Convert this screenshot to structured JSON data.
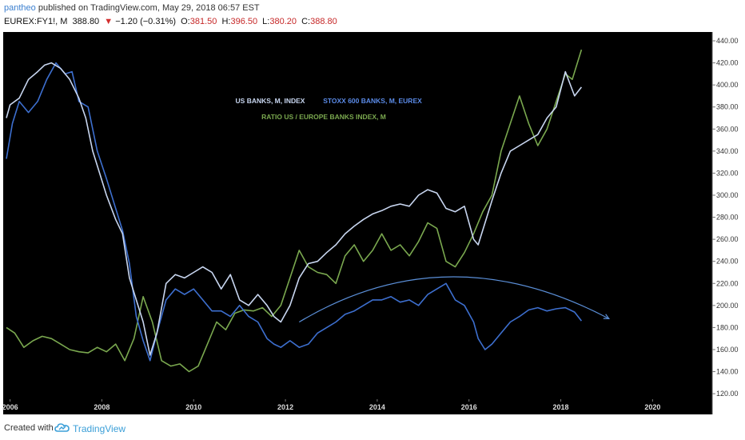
{
  "header": {
    "author": "pantheo",
    "published_text": "published on TradingView.com, May 29, 2018 06:57 EST",
    "symbol": "EUREX:FY1!, M",
    "last": "388.80",
    "direction_icon": "triangle-down-icon",
    "change": "−1.20 (−0.31%)",
    "open_label": "O:",
    "open": "381.50",
    "high_label": "H:",
    "high": "396.50",
    "low_label": "L:",
    "low": "380.20",
    "close_label": "C:",
    "close": "388.80"
  },
  "footer": {
    "created_with": "Created with",
    "brand": "TradingView",
    "brand_icon": "tradingview-cloud-icon"
  },
  "colors": {
    "background": "#000000",
    "us_banks": "#c8d6f0",
    "stoxx600": "#3d6fcf",
    "ratio": "#7aa84f",
    "arc": "#5b8fd8",
    "axis_text": "#dddddd",
    "negative": "#c62828",
    "brand": "#3b9fd8"
  },
  "chart_data": {
    "type": "line",
    "title": "",
    "xlabel": "",
    "ylabel": "",
    "xlim": [
      2005.85,
      2021.3
    ],
    "ylim": [
      115,
      448
    ],
    "x_ticks": [
      "2006",
      "2008",
      "2010",
      "2012",
      "2014",
      "2016",
      "2018",
      "2020"
    ],
    "y_ticks": [
      "120.00",
      "140.00",
      "160.00",
      "180.00",
      "200.00",
      "220.00",
      "240.00",
      "260.00",
      "280.00",
      "300.00",
      "320.00",
      "340.00",
      "360.00",
      "380.00",
      "400.00",
      "420.00",
      "440.00"
    ],
    "grid": false,
    "legend": [
      "US BANKS, M, INDEX",
      "STOXX 600 BANKS, M, EUREX",
      "RATIO US / EUROPE BANKS INDEX, M"
    ],
    "legend_placement": "top-center",
    "series": [
      {
        "name": "US BANKS, M, INDEX",
        "color": "#c8d6f0",
        "x": [
          2005.92,
          2006.0,
          2006.2,
          2006.4,
          2006.6,
          2006.75,
          2006.9,
          2007.1,
          2007.3,
          2007.5,
          2007.65,
          2007.8,
          2007.95,
          2008.1,
          2008.3,
          2008.45,
          2008.6,
          2008.75,
          2008.9,
          2009.05,
          2009.2,
          2009.4,
          2009.6,
          2009.8,
          2010.0,
          2010.2,
          2010.4,
          2010.6,
          2010.8,
          2011.0,
          2011.2,
          2011.4,
          2011.6,
          2011.75,
          2011.9,
          2012.1,
          2012.3,
          2012.5,
          2012.7,
          2012.9,
          2013.1,
          2013.3,
          2013.5,
          2013.7,
          2013.9,
          2014.1,
          2014.3,
          2014.5,
          2014.7,
          2014.9,
          2015.1,
          2015.3,
          2015.5,
          2015.7,
          2015.9,
          2016.1,
          2016.2,
          2016.35,
          2016.5,
          2016.7,
          2016.9,
          2017.1,
          2017.3,
          2017.5,
          2017.7,
          2017.9,
          2018.1,
          2018.3,
          2018.45
        ],
        "y": [
          370,
          382,
          388,
          405,
          412,
          418,
          420,
          415,
          405,
          388,
          370,
          340,
          320,
          300,
          278,
          265,
          225,
          205,
          185,
          155,
          175,
          220,
          228,
          225,
          230,
          235,
          230,
          215,
          228,
          205,
          200,
          210,
          200,
          190,
          185,
          200,
          225,
          238,
          240,
          248,
          255,
          265,
          272,
          278,
          283,
          286,
          290,
          292,
          290,
          300,
          305,
          302,
          288,
          285,
          290,
          260,
          255,
          275,
          295,
          320,
          340,
          345,
          350,
          355,
          370,
          380,
          412,
          390,
          398
        ]
      },
      {
        "name": "STOXX 600 BANKS, M, EUREX",
        "color": "#3d6fcf",
        "x": [
          2005.92,
          2006.05,
          2006.2,
          2006.4,
          2006.6,
          2006.8,
          2007.0,
          2007.2,
          2007.35,
          2007.5,
          2007.7,
          2007.9,
          2008.1,
          2008.3,
          2008.45,
          2008.6,
          2008.75,
          2008.9,
          2009.05,
          2009.2,
          2009.4,
          2009.6,
          2009.8,
          2010.0,
          2010.2,
          2010.4,
          2010.6,
          2010.8,
          2011.0,
          2011.2,
          2011.4,
          2011.6,
          2011.75,
          2011.9,
          2012.1,
          2012.3,
          2012.5,
          2012.7,
          2012.9,
          2013.1,
          2013.3,
          2013.5,
          2013.7,
          2013.9,
          2014.1,
          2014.3,
          2014.5,
          2014.7,
          2014.9,
          2015.1,
          2015.3,
          2015.5,
          2015.7,
          2015.9,
          2016.1,
          2016.2,
          2016.35,
          2016.5,
          2016.7,
          2016.9,
          2017.1,
          2017.3,
          2017.5,
          2017.7,
          2017.9,
          2018.1,
          2018.3,
          2018.45
        ],
        "y": [
          333,
          365,
          385,
          375,
          385,
          405,
          420,
          410,
          412,
          385,
          380,
          340,
          315,
          288,
          268,
          238,
          190,
          168,
          150,
          175,
          205,
          215,
          210,
          215,
          205,
          195,
          195,
          190,
          200,
          190,
          185,
          170,
          165,
          162,
          168,
          162,
          165,
          175,
          180,
          185,
          192,
          195,
          200,
          205,
          205,
          208,
          203,
          205,
          200,
          210,
          215,
          220,
          205,
          200,
          185,
          170,
          160,
          165,
          175,
          185,
          190,
          196,
          198,
          195,
          197,
          198,
          194,
          186
        ]
      },
      {
        "name": "RATIO US / EUROPE BANKS INDEX, M",
        "color": "#7aa84f",
        "x": [
          2005.92,
          2006.1,
          2006.3,
          2006.5,
          2006.7,
          2006.9,
          2007.1,
          2007.3,
          2007.5,
          2007.7,
          2007.9,
          2008.1,
          2008.3,
          2008.5,
          2008.7,
          2008.9,
          2009.1,
          2009.3,
          2009.5,
          2009.7,
          2009.9,
          2010.1,
          2010.3,
          2010.5,
          2010.7,
          2010.9,
          2011.1,
          2011.3,
          2011.5,
          2011.7,
          2011.9,
          2012.1,
          2012.3,
          2012.5,
          2012.7,
          2012.9,
          2013.1,
          2013.3,
          2013.5,
          2013.7,
          2013.9,
          2014.1,
          2014.3,
          2014.5,
          2014.7,
          2014.9,
          2015.1,
          2015.3,
          2015.5,
          2015.7,
          2015.9,
          2016.1,
          2016.3,
          2016.5,
          2016.7,
          2016.9,
          2017.1,
          2017.3,
          2017.5,
          2017.7,
          2017.9,
          2018.1,
          2018.25,
          2018.45
        ],
        "y": [
          180,
          175,
          162,
          168,
          172,
          170,
          165,
          160,
          158,
          157,
          162,
          158,
          165,
          150,
          170,
          208,
          185,
          150,
          145,
          147,
          140,
          145,
          165,
          185,
          178,
          193,
          196,
          195,
          198,
          190,
          200,
          225,
          250,
          235,
          230,
          228,
          220,
          245,
          255,
          240,
          250,
          265,
          250,
          255,
          245,
          258,
          275,
          270,
          240,
          235,
          248,
          265,
          285,
          300,
          340,
          365,
          390,
          365,
          345,
          360,
          385,
          410,
          405,
          432
        ]
      }
    ],
    "annotations": [
      {
        "type": "arc",
        "x": [
          2012.3,
          2015.6,
          2019.05
        ],
        "y": [
          185,
          226,
          188
        ]
      }
    ]
  }
}
